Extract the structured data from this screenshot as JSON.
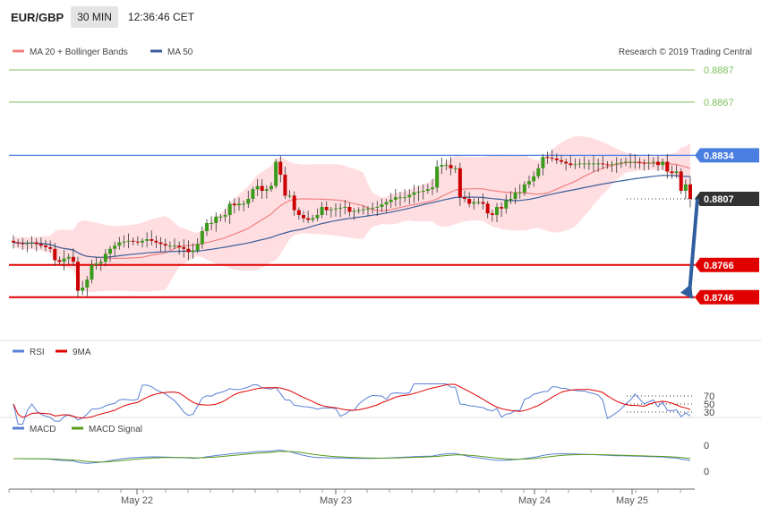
{
  "header": {
    "symbol": "EUR/GBP",
    "timeframe": "30 MIN",
    "time": "12:36:46 CET"
  },
  "colors": {
    "ma20": "#f08080",
    "bands": "#ffd6d9",
    "ma50": "#3a5f9a",
    "up": "#3a9a1a",
    "down": "#cc0000",
    "resistance": "#7dc15a",
    "pivot": "#4a7ee0",
    "support": "#e00000",
    "rsi": "#5a7fd6",
    "rsi_ma": "#e00000",
    "macd": "#5a7fd6",
    "macd_signal": "#5a9a1a",
    "arrow": "#2f5e9e",
    "current_box": "#333333"
  },
  "legend_main": [
    {
      "label": "MA 20 + Bollinger Bands",
      "color": "#f08080"
    },
    {
      "label": "MA 50",
      "color": "#3a5f9a"
    }
  ],
  "copyright": "Research © 2019 Trading Central",
  "legend_rsi": [
    {
      "label": "RSI",
      "color": "#5a7fd6"
    },
    {
      "label": "9MA",
      "color": "#e00000"
    }
  ],
  "legend_macd": [
    {
      "label": "MACD",
      "color": "#5a7fd6"
    },
    {
      "label": "MACD Signal",
      "color": "#5a9a1a"
    }
  ],
  "chart_data": {
    "type": "candlestick",
    "y_range": [
      0.8731,
      0.8893
    ],
    "levels": [
      {
        "value": 0.8887,
        "label": "0.8887",
        "kind": "resistance"
      },
      {
        "value": 0.8867,
        "label": "0.8867",
        "kind": "resistance"
      },
      {
        "value": 0.8834,
        "label": "0.8834",
        "kind": "pivot"
      },
      {
        "value": 0.8807,
        "label": "0.8807",
        "kind": "current"
      },
      {
        "value": 0.8766,
        "label": "0.8766",
        "kind": "support"
      },
      {
        "value": 0.8746,
        "label": "0.8746",
        "kind": "support"
      }
    ],
    "x_ticks": [
      "May 22",
      "May 23",
      "May 24",
      "May 25"
    ],
    "projection": {
      "from": 0.8807,
      "to": 0.8746
    },
    "close_keys": [
      [
        0,
        0.878
      ],
      [
        2,
        0.8779
      ],
      [
        4,
        0.878
      ],
      [
        6,
        0.8778
      ],
      [
        8,
        0.8776
      ],
      [
        9,
        0.8769
      ],
      [
        10,
        0.8768
      ],
      [
        11,
        0.877
      ],
      [
        12,
        0.8771
      ],
      [
        13,
        0.8768
      ],
      [
        14,
        0.875
      ],
      [
        15,
        0.8752
      ],
      [
        16,
        0.8757
      ],
      [
        17,
        0.8766
      ],
      [
        18,
        0.8767
      ],
      [
        19,
        0.8768
      ],
      [
        20,
        0.8773
      ],
      [
        21,
        0.8776
      ],
      [
        23,
        0.878
      ],
      [
        25,
        0.8781
      ],
      [
        27,
        0.878
      ],
      [
        29,
        0.8782
      ],
      [
        31,
        0.878
      ],
      [
        33,
        0.8778
      ],
      [
        35,
        0.8778
      ],
      [
        37,
        0.8776
      ],
      [
        38,
        0.8774
      ],
      [
        39,
        0.8775
      ],
      [
        40,
        0.8779
      ],
      [
        41,
        0.8787
      ],
      [
        42,
        0.8792
      ],
      [
        43,
        0.8792
      ],
      [
        44,
        0.8796
      ],
      [
        45,
        0.8796
      ],
      [
        46,
        0.8797
      ],
      [
        47,
        0.8804
      ],
      [
        48,
        0.8803
      ],
      [
        49,
        0.8804
      ],
      [
        50,
        0.8804
      ],
      [
        51,
        0.8807
      ],
      [
        52,
        0.8813
      ],
      [
        53,
        0.8815
      ],
      [
        54,
        0.8812
      ],
      [
        55,
        0.8813
      ],
      [
        56,
        0.8815
      ],
      [
        57,
        0.883
      ],
      [
        58,
        0.8822
      ],
      [
        59,
        0.8809
      ],
      [
        60,
        0.8809
      ],
      [
        61,
        0.88
      ],
      [
        62,
        0.8797
      ],
      [
        63,
        0.8795
      ],
      [
        64,
        0.8794
      ],
      [
        65,
        0.8795
      ],
      [
        66,
        0.8797
      ],
      [
        67,
        0.8802
      ],
      [
        68,
        0.88
      ],
      [
        70,
        0.8801
      ],
      [
        72,
        0.8802
      ],
      [
        73,
        0.8799
      ],
      [
        75,
        0.88
      ],
      [
        77,
        0.8801
      ],
      [
        79,
        0.8802
      ],
      [
        81,
        0.8805
      ],
      [
        83,
        0.8808
      ],
      [
        85,
        0.8808
      ],
      [
        87,
        0.8811
      ],
      [
        89,
        0.8812
      ],
      [
        91,
        0.8814
      ],
      [
        92,
        0.8827
      ],
      [
        93,
        0.8828
      ],
      [
        94,
        0.8828
      ],
      [
        95,
        0.8826
      ],
      [
        96,
        0.8826
      ],
      [
        97,
        0.8808
      ],
      [
        98,
        0.8807
      ],
      [
        99,
        0.8804
      ],
      [
        100,
        0.8805
      ],
      [
        101,
        0.8805
      ],
      [
        102,
        0.8804
      ],
      [
        103,
        0.8798
      ],
      [
        104,
        0.8797
      ],
      [
        105,
        0.8802
      ],
      [
        106,
        0.8801
      ],
      [
        107,
        0.8806
      ],
      [
        108,
        0.8807
      ],
      [
        109,
        0.8811
      ],
      [
        110,
        0.8811
      ],
      [
        111,
        0.8816
      ],
      [
        112,
        0.8818
      ],
      [
        113,
        0.8821
      ],
      [
        114,
        0.8826
      ],
      [
        115,
        0.8833
      ],
      [
        117,
        0.8832
      ],
      [
        119,
        0.883
      ],
      [
        121,
        0.8828
      ],
      [
        123,
        0.8829
      ],
      [
        125,
        0.8829
      ],
      [
        127,
        0.8829
      ],
      [
        129,
        0.8828
      ],
      [
        131,
        0.8829
      ],
      [
        133,
        0.883
      ],
      [
        135,
        0.883
      ],
      [
        137,
        0.8829
      ],
      [
        139,
        0.883
      ],
      [
        140,
        0.8828
      ],
      [
        141,
        0.883
      ],
      [
        142,
        0.8824
      ],
      [
        143,
        0.8823
      ],
      [
        144,
        0.8824
      ],
      [
        145,
        0.8812
      ],
      [
        146,
        0.8816
      ],
      [
        147,
        0.8807
      ]
    ],
    "rsi_levels": [
      70,
      50,
      30
    ],
    "macd_levels": [
      "0",
      "0"
    ]
  }
}
